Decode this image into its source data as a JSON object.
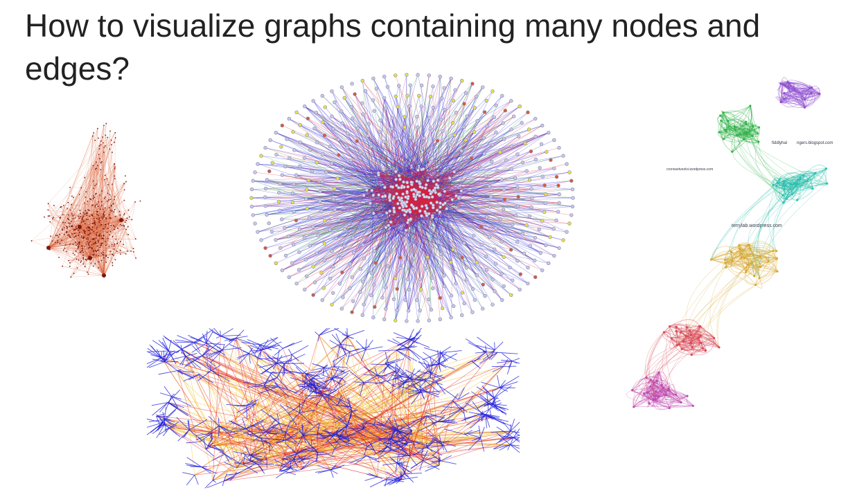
{
  "slide": {
    "title": "How to visualize graphs containing many nodes and edges?"
  },
  "graphs": [
    {
      "name": "orange-hub-network",
      "edge_color": "#d9623a",
      "node_color": "#7a1a10"
    },
    {
      "name": "circular-dense-network",
      "edge_colors": [
        "#2b2bd6",
        "#e0203c",
        "#3aa53a"
      ],
      "node_colors": [
        "#c8c8e6",
        "#e8e04a",
        "#d65a3a"
      ]
    },
    {
      "name": "community-colored-network",
      "community_colors": [
        "#33b34a",
        "#2ec0b0",
        "#d8a830",
        "#d84a5a",
        "#c04ab0",
        "#9050d0"
      ],
      "labels": [
        "fiddlyhal",
        "ngers.blogspot.com",
        "cronosetveolvi.wordpress.com",
        "terrylab.wordpress.com"
      ]
    },
    {
      "name": "bipartite-dense-network",
      "edge_colors": [
        "#2020e0",
        "#e02020",
        "#f0c020"
      ]
    }
  ]
}
